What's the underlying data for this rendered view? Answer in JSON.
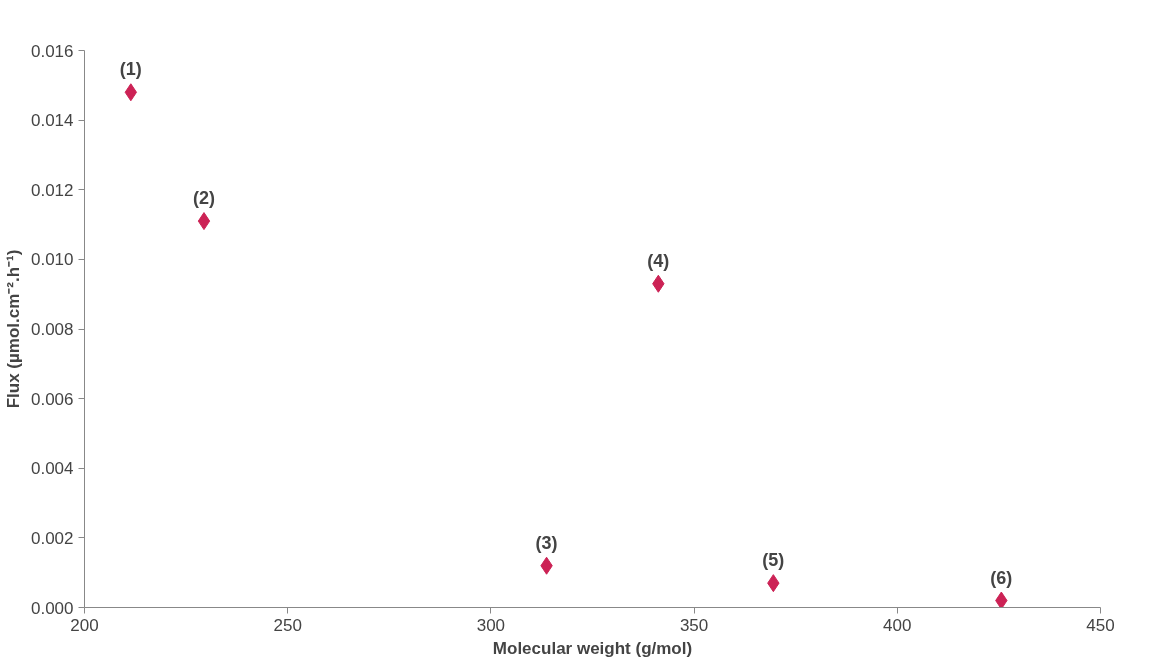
{
  "chart_data": {
    "type": "scatter",
    "xlabel": "Molecular weight (g/mol)",
    "ylabel": "Flux (µmol.cm⁻².h⁻¹)",
    "x": [
      211.4,
      229.4,
      313.7,
      341.2,
      369.5,
      425.6
    ],
    "series": [
      {
        "color": "#cc2255",
        "values": [
          0.0148,
          0.0111,
          0.0012,
          0.0093,
          0.0007,
          0.0002
        ]
      }
    ],
    "xlim": [
      200,
      450
    ],
    "xticks": [
      200,
      250,
      300,
      350,
      400,
      450
    ],
    "ylim": [
      0,
      0.016
    ],
    "yticks": [
      {
        "value": 0,
        "label": "0.000"
      },
      {
        "value": 0.002,
        "label": "0.002"
      },
      {
        "value": 0.004,
        "label": "0.004"
      },
      {
        "value": 0.006,
        "label": "0.006"
      },
      {
        "value": 0.008,
        "label": "0.008"
      },
      {
        "value": 0.01,
        "label": "0.010"
      },
      {
        "value": 0.012,
        "label": "0.012"
      },
      {
        "value": 0.014,
        "label": "0.014"
      },
      {
        "value": 0.016,
        "label": "0.016"
      }
    ],
    "marker": "diamond",
    "grid": false,
    "annotations": [
      {
        "text": "(1)",
        "x": 211.4,
        "y": 0.0148
      },
      {
        "text": "(2)",
        "x": 229.4,
        "y": 0.0111
      },
      {
        "text": "(3)",
        "x": 313.7,
        "y": 0.0012
      },
      {
        "text": "(4)",
        "x": 341.2,
        "y": 0.0093
      },
      {
        "text": "(5)",
        "x": 369.5,
        "y": 0.0007
      },
      {
        "text": "(6)",
        "x": 425.6,
        "y": 0.0002
      }
    ]
  }
}
